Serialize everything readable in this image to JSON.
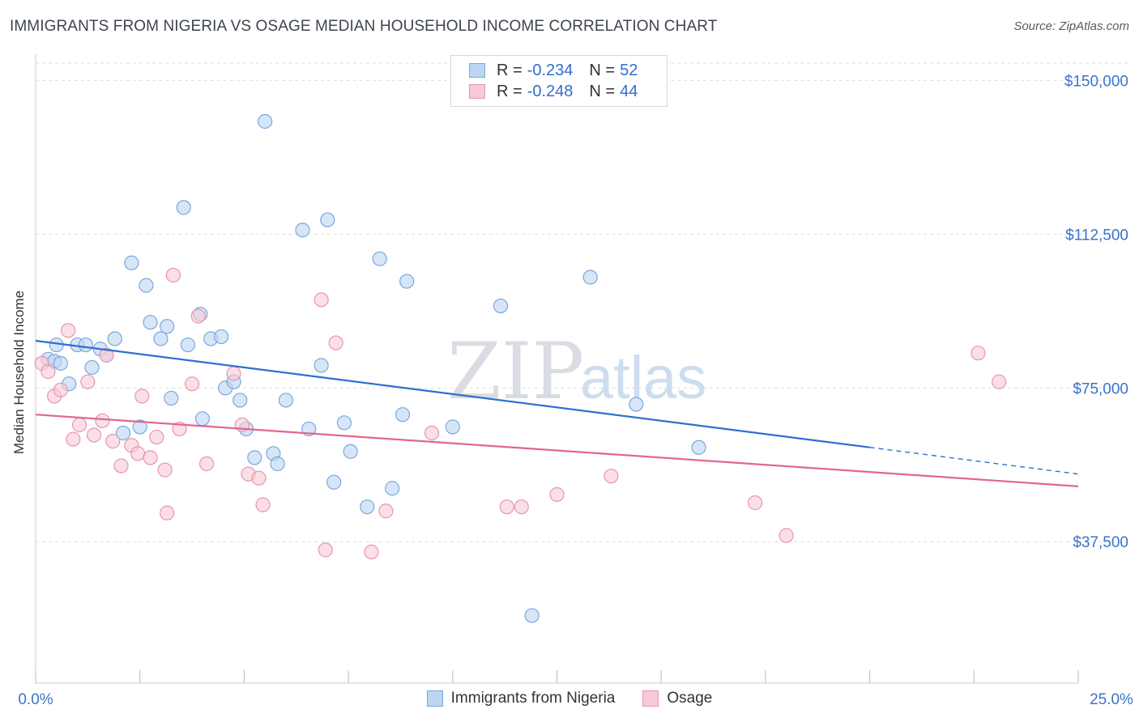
{
  "title": "IMMIGRANTS FROM NIGERIA VS OSAGE MEDIAN HOUSEHOLD INCOME CORRELATION CHART",
  "source": "Source: ZipAtlas.com",
  "watermark": {
    "part1": "ZIP",
    "part2": "atlas"
  },
  "colors": {
    "blue_fill": "#bcd5f2",
    "blue_stroke": "#7aa7dd",
    "blue_line": "#2f6fd0",
    "pink_fill": "#f8c9d6",
    "pink_stroke": "#e895ad",
    "pink_line": "#e06790",
    "tick_text": "#3b73c9",
    "grid": "#dddddd"
  },
  "legend_top": {
    "series1": {
      "r_label": "R =",
      "r_value": "-0.234",
      "n_label": "N =",
      "n_value": "52"
    },
    "series2": {
      "r_label": "R =",
      "r_value": "-0.248",
      "n_label": "N =",
      "n_value": "44"
    }
  },
  "chart_data": {
    "type": "scatter",
    "title": "IMMIGRANTS FROM NIGERIA VS OSAGE MEDIAN HOUSEHOLD INCOME CORRELATION CHART",
    "xlabel": "",
    "ylabel": "Median Household Income",
    "xlim": [
      0,
      25
    ],
    "ylim": [
      3000,
      155000
    ],
    "x_tick_labels": [
      "0.0%",
      "25.0%"
    ],
    "y_ticks": [
      37500,
      75000,
      112500,
      150000
    ],
    "y_tick_labels": [
      "$37,500",
      "$75,000",
      "$112,500",
      "$150,000"
    ],
    "grid": true,
    "legend_position": "bottom",
    "series": [
      {
        "name": "Immigrants from Nigeria",
        "points": [
          [
            0.3,
            82000
          ],
          [
            0.45,
            81500
          ],
          [
            0.5,
            85500
          ],
          [
            0.6,
            81000
          ],
          [
            0.8,
            76000
          ],
          [
            1.0,
            85500
          ],
          [
            1.2,
            85500
          ],
          [
            1.35,
            80000
          ],
          [
            1.55,
            84500
          ],
          [
            1.7,
            83000
          ],
          [
            1.9,
            87000
          ],
          [
            2.1,
            64000
          ],
          [
            2.3,
            105500
          ],
          [
            2.5,
            65500
          ],
          [
            2.65,
            100000
          ],
          [
            2.75,
            91000
          ],
          [
            3.0,
            87000
          ],
          [
            3.15,
            90000
          ],
          [
            3.25,
            72500
          ],
          [
            3.55,
            119000
          ],
          [
            3.65,
            85500
          ],
          [
            3.95,
            93000
          ],
          [
            4.0,
            67500
          ],
          [
            4.2,
            87000
          ],
          [
            4.45,
            87500
          ],
          [
            4.55,
            75000
          ],
          [
            4.75,
            76500
          ],
          [
            4.9,
            72000
          ],
          [
            5.05,
            65000
          ],
          [
            5.25,
            58000
          ],
          [
            5.5,
            140000
          ],
          [
            5.7,
            59000
          ],
          [
            5.8,
            56500
          ],
          [
            6.0,
            72000
          ],
          [
            6.4,
            113500
          ],
          [
            6.55,
            65000
          ],
          [
            6.85,
            80500
          ],
          [
            7.0,
            116000
          ],
          [
            7.15,
            52000
          ],
          [
            7.4,
            66500
          ],
          [
            7.55,
            59500
          ],
          [
            7.95,
            46000
          ],
          [
            8.25,
            106500
          ],
          [
            8.55,
            50500
          ],
          [
            8.8,
            68500
          ],
          [
            8.9,
            101000
          ],
          [
            10.0,
            65500
          ],
          [
            11.15,
            95000
          ],
          [
            11.9,
            19500
          ],
          [
            13.3,
            102000
          ],
          [
            14.4,
            71000
          ],
          [
            15.9,
            60500
          ]
        ]
      },
      {
        "name": "Osage",
        "points": [
          [
            0.15,
            81000
          ],
          [
            0.3,
            79000
          ],
          [
            0.45,
            73000
          ],
          [
            0.6,
            74500
          ],
          [
            0.78,
            89000
          ],
          [
            0.9,
            62500
          ],
          [
            1.05,
            66000
          ],
          [
            1.25,
            76500
          ],
          [
            1.4,
            63500
          ],
          [
            1.6,
            67000
          ],
          [
            1.7,
            83000
          ],
          [
            1.85,
            62000
          ],
          [
            2.05,
            56000
          ],
          [
            2.3,
            61000
          ],
          [
            2.45,
            59000
          ],
          [
            2.55,
            73000
          ],
          [
            2.75,
            58000
          ],
          [
            2.9,
            63000
          ],
          [
            3.1,
            55000
          ],
          [
            3.15,
            44500
          ],
          [
            3.3,
            102500
          ],
          [
            3.45,
            65000
          ],
          [
            3.75,
            76000
          ],
          [
            3.9,
            92500
          ],
          [
            4.1,
            56500
          ],
          [
            4.75,
            78500
          ],
          [
            4.95,
            66000
          ],
          [
            5.1,
            54000
          ],
          [
            5.35,
            53000
          ],
          [
            5.45,
            46500
          ],
          [
            6.85,
            96500
          ],
          [
            6.95,
            35500
          ],
          [
            7.2,
            86000
          ],
          [
            8.05,
            35000
          ],
          [
            8.4,
            45000
          ],
          [
            9.5,
            64000
          ],
          [
            11.3,
            46000
          ],
          [
            11.65,
            46000
          ],
          [
            12.5,
            49000
          ],
          [
            13.8,
            53500
          ],
          [
            17.25,
            47000
          ],
          [
            18.0,
            39000
          ],
          [
            22.6,
            83500
          ],
          [
            23.1,
            76500
          ]
        ]
      }
    ],
    "trend_lines": [
      {
        "series": "Immigrants from Nigeria",
        "x": [
          0,
          20
        ],
        "y": [
          86500,
          60500
        ],
        "dashed_extension": {
          "x": [
            20,
            25
          ],
          "y": [
            60500,
            54000
          ]
        }
      },
      {
        "series": "Osage",
        "x": [
          0,
          25
        ],
        "y": [
          68500,
          51000
        ]
      }
    ]
  }
}
